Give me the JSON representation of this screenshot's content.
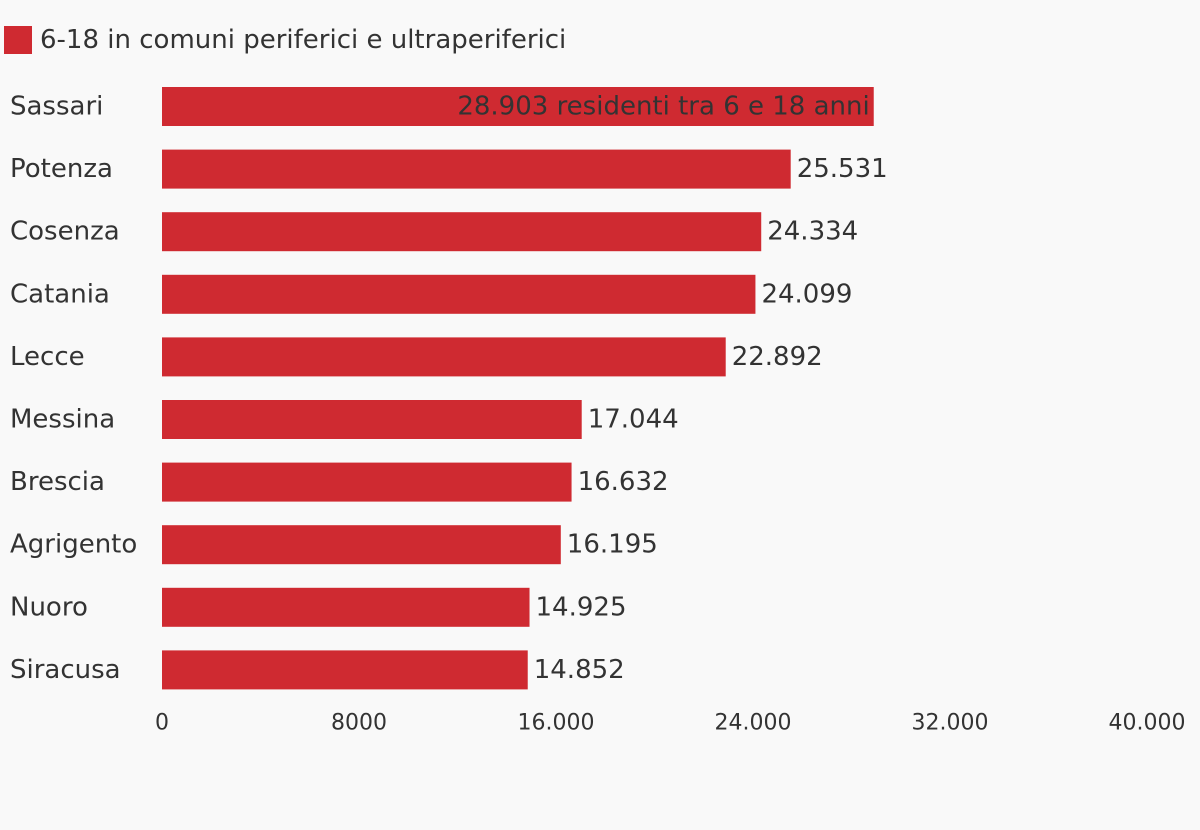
{
  "chart_data": {
    "type": "bar",
    "orientation": "horizontal",
    "categories": [
      "Sassari",
      "Potenza",
      "Cosenza",
      "Catania",
      "Lecce",
      "Messina",
      "Brescia",
      "Agrigento",
      "Nuoro",
      "Siracusa"
    ],
    "series": [
      {
        "name": "6-18 in comuni periferici e ultraperiferici",
        "values": [
          28903,
          25531,
          24334,
          24099,
          22892,
          17044,
          16632,
          16195,
          14925,
          14852
        ],
        "value_labels": [
          "28.903 residenti tra 6 e 18 anni",
          "25.531",
          "24.334",
          "24.099",
          "22.892",
          "17.044",
          "16.632",
          "16.195",
          "14.925",
          "14.852"
        ]
      }
    ],
    "xlim": [
      0,
      40000
    ],
    "x_ticks": [
      0,
      8000,
      16000,
      24000,
      32000,
      40000
    ],
    "x_tick_labels": [
      "0",
      "8000",
      "16.000",
      "24.000",
      "32.000",
      "40.000"
    ],
    "legend_placement": "top-left",
    "grid": false,
    "title": "",
    "xlabel": "",
    "ylabel": ""
  },
  "colors": {
    "bar": "#cf2a31",
    "text": "#333333",
    "background": "#f9f9f9"
  }
}
